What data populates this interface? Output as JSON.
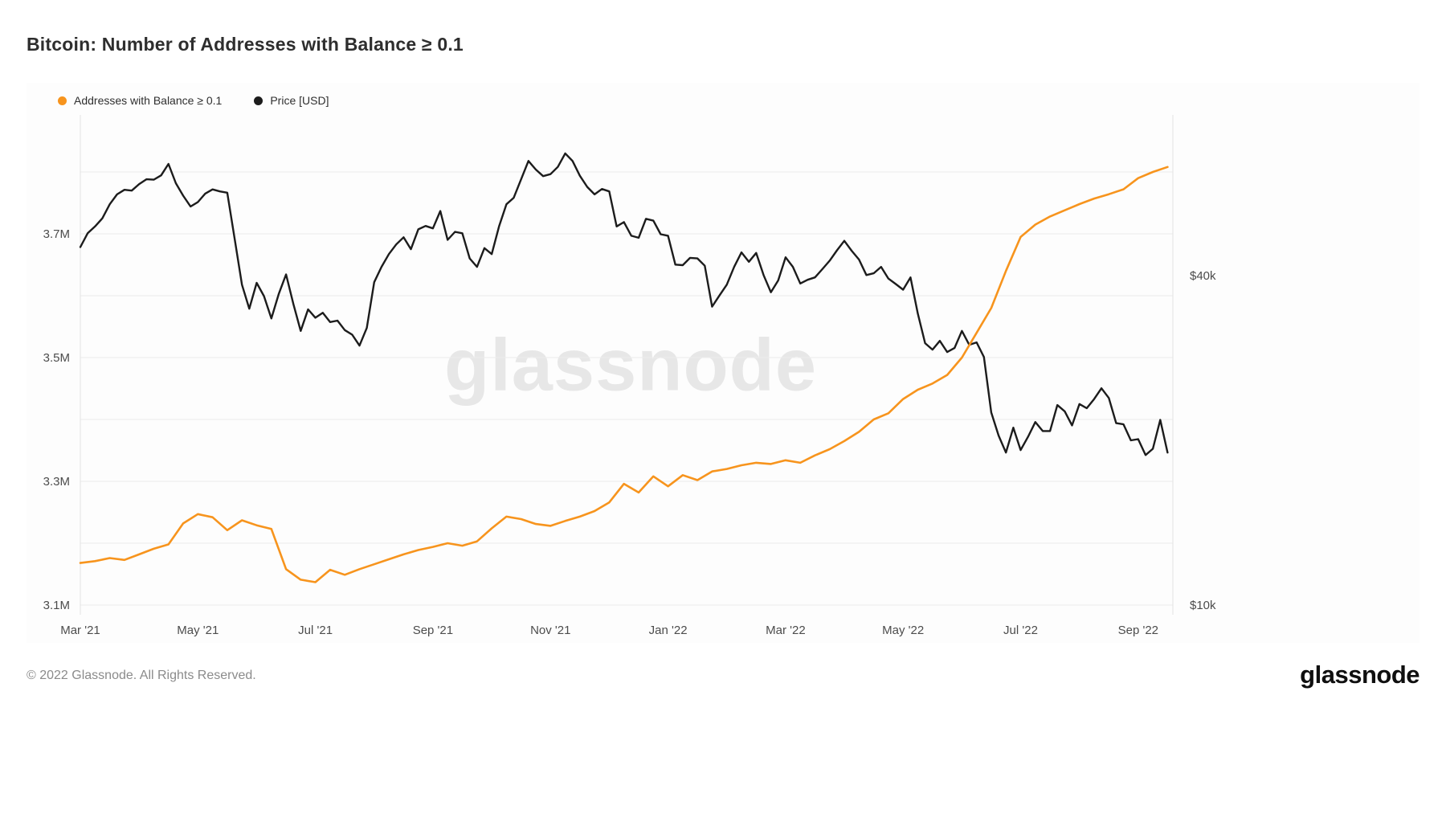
{
  "page": {
    "title": "Bitcoin: Number of Addresses with Balance ≥ 0.1",
    "watermark": "glassnode",
    "footer": {
      "copyright": "© 2022 Glassnode. All Rights Reserved.",
      "brand": "glassnode"
    }
  },
  "legend": [
    {
      "label": "Addresses with Balance ≥ 0.1",
      "color": "#f7941d"
    },
    {
      "label": "Price [USD]",
      "color": "#1c1c1c"
    }
  ],
  "chart_data": {
    "type": "line",
    "title": "Bitcoin: Number of Addresses with Balance ≥ 0.1",
    "legend_position": "top-left",
    "grid": "horizontal",
    "x_axis": {
      "unit": "months since Mar 2021",
      "range": [
        0,
        18.59
      ],
      "ticks": [
        {
          "t": 0,
          "label": "Mar '21"
        },
        {
          "t": 2,
          "label": "May '21"
        },
        {
          "t": 4,
          "label": "Jul '21"
        },
        {
          "t": 6,
          "label": "Sep '21"
        },
        {
          "t": 8,
          "label": "Nov '21"
        },
        {
          "t": 10,
          "label": "Jan '22"
        },
        {
          "t": 12,
          "label": "Mar '22"
        },
        {
          "t": 14,
          "label": "May '22"
        },
        {
          "t": 16,
          "label": "Jul '22"
        },
        {
          "t": 18,
          "label": "Sep '22"
        }
      ]
    },
    "left_axis": {
      "name": "Addresses with Balance ≥ 0.1",
      "unit": "millions of addresses",
      "scale": "linear",
      "range": [
        3.084,
        3.893
      ],
      "ticks": [
        {
          "v": 3.1,
          "label": "3.1M"
        },
        {
          "v": 3.3,
          "label": "3.3M"
        },
        {
          "v": 3.5,
          "label": "3.5M"
        },
        {
          "v": 3.7,
          "label": "3.7M"
        }
      ],
      "gridlines": [
        3.1,
        3.2,
        3.3,
        3.4,
        3.5,
        3.6,
        3.7,
        3.8
      ]
    },
    "right_axis": {
      "name": "Price [USD]",
      "unit": "thousand USD",
      "scale": "log10",
      "ticks": [
        {
          "v": 10,
          "label": "$10k"
        },
        {
          "v": 40,
          "label": "$40k"
        }
      ]
    },
    "series": [
      {
        "name": "Addresses with Balance ≥ 0.1",
        "axis": "left",
        "color": "#f7941d",
        "unit": "M",
        "x_start": 0,
        "x_step": 0.25,
        "values": [
          3.168,
          3.171,
          3.176,
          3.173,
          3.182,
          3.191,
          3.198,
          3.232,
          3.247,
          3.242,
          3.221,
          3.237,
          3.229,
          3.223,
          3.158,
          3.141,
          3.137,
          3.157,
          3.149,
          3.158,
          3.166,
          3.174,
          3.182,
          3.189,
          3.194,
          3.2,
          3.196,
          3.203,
          3.224,
          3.243,
          3.239,
          3.231,
          3.228,
          3.236,
          3.243,
          3.252,
          3.266,
          3.296,
          3.282,
          3.308,
          3.292,
          3.31,
          3.302,
          3.316,
          3.32,
          3.326,
          3.33,
          3.328,
          3.334,
          3.33,
          3.342,
          3.352,
          3.365,
          3.38,
          3.4,
          3.41,
          3.433,
          3.448,
          3.458,
          3.472,
          3.5,
          3.54,
          3.58,
          3.64,
          3.695,
          3.715,
          3.728,
          3.738,
          3.748,
          3.757,
          3.764,
          3.772,
          3.79,
          3.8,
          3.808
        ]
      },
      {
        "name": "Price [USD]",
        "axis": "right",
        "color": "#1c1c1c",
        "unit": "kUSD",
        "x_start": 0,
        "x_step": 0.125,
        "values": [
          45.1,
          47.8,
          49.2,
          50.9,
          54.0,
          56.3,
          57.4,
          57.2,
          58.8,
          60.0,
          59.9,
          61.0,
          64.0,
          59.0,
          56.0,
          53.5,
          54.5,
          56.5,
          57.5,
          57.0,
          56.7,
          46.8,
          38.5,
          34.8,
          38.8,
          36.7,
          33.4,
          37.0,
          40.2,
          35.5,
          31.7,
          34.7,
          33.5,
          34.2,
          32.9,
          33.1,
          31.8,
          31.2,
          29.8,
          32.1,
          38.9,
          41.5,
          43.8,
          45.6,
          47.0,
          44.7,
          48.6,
          49.3,
          48.8,
          52.5,
          46.5,
          48.1,
          47.8,
          43.0,
          41.5,
          44.9,
          43.8,
          49.2,
          54.0,
          55.5,
          60.0,
          64.8,
          62.5,
          60.8,
          61.3,
          63.2,
          66.9,
          64.8,
          60.9,
          58.1,
          56.3,
          57.6,
          57.0,
          49.2,
          50.1,
          47.3,
          46.9,
          50.8,
          50.4,
          47.6,
          47.3,
          41.9,
          41.8,
          43.1,
          43.0,
          41.7,
          35.1,
          36.8,
          38.5,
          41.5,
          44.1,
          42.4,
          44.0,
          40.1,
          37.3,
          39.2,
          43.2,
          41.5,
          38.7,
          39.3,
          39.7,
          41.1,
          42.6,
          44.5,
          46.3,
          44.4,
          42.8,
          40.1,
          40.4,
          41.5,
          39.5,
          38.6,
          37.7,
          39.7,
          34.1,
          30.1,
          29.3,
          30.4,
          29.0,
          29.5,
          31.7,
          29.9,
          30.2,
          28.4,
          22.5,
          20.4,
          19.0,
          21.1,
          19.2,
          20.3,
          21.6,
          20.8,
          20.8,
          23.2,
          22.6,
          21.3,
          23.3,
          22.9,
          23.8,
          24.9,
          23.9,
          21.5,
          21.4,
          20.0,
          20.1,
          18.8,
          19.3,
          21.8,
          19.0
        ]
      }
    ]
  }
}
